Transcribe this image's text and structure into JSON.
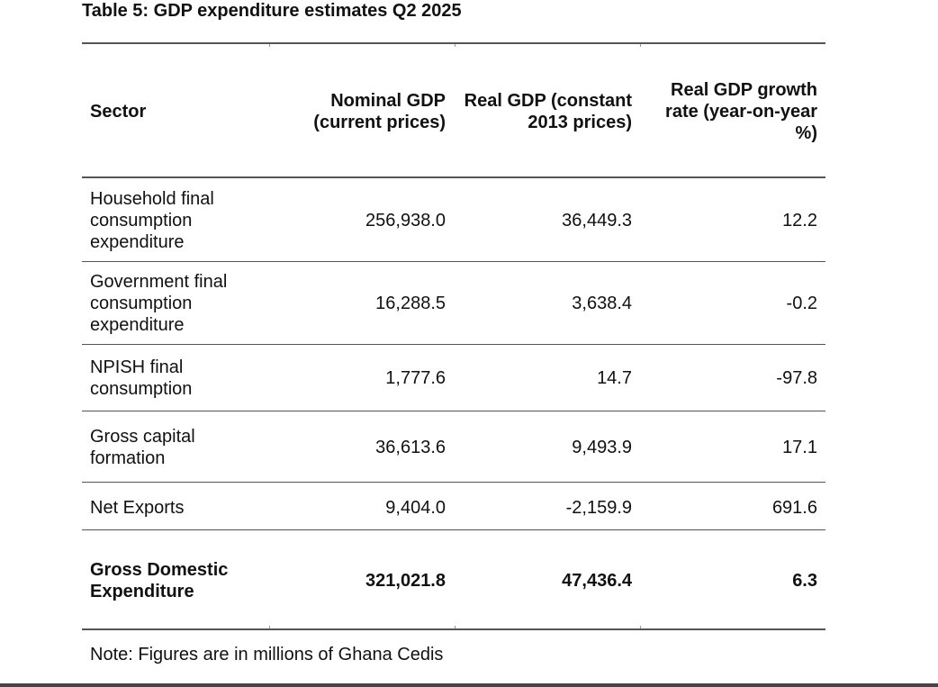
{
  "title": "Table 5: GDP expenditure estimates Q2 2025",
  "headers": {
    "sector": "Sector",
    "nominal": "Nominal GDP (current prices)",
    "real": "Real GDP (constant 2013 prices)",
    "growth": "Real GDP growth rate (year-on-year %)"
  },
  "rows": [
    {
      "sector": "Household final consumption expenditure",
      "nominal": "256,938.0",
      "real": "36,449.3",
      "growth": "12.2"
    },
    {
      "sector": "Government final consumption expenditure",
      "nominal": "16,288.5",
      "real": "3,638.4",
      "growth": "-0.2"
    },
    {
      "sector": "NPISH final consumption",
      "nominal": "1,777.6",
      "real": "14.7",
      "growth": "-97.8"
    },
    {
      "sector": "Gross capital formation",
      "nominal": "36,613.6",
      "real": "9,493.9",
      "growth": "17.1"
    },
    {
      "sector": "Net Exports",
      "nominal": "9,404.0",
      "real": "-2,159.9",
      "growth": "691.6"
    }
  ],
  "total": {
    "sector": "Gross Domestic Expenditure",
    "nominal": "321,021.8",
    "real": "47,436.4",
    "growth": "6.3"
  },
  "note": "Note: Figures are in millions of Ghana Cedis"
}
